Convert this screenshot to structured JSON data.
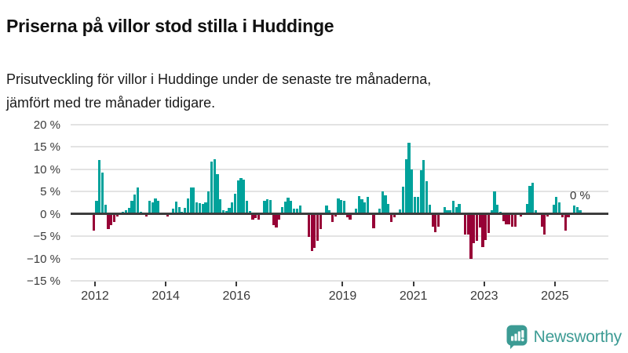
{
  "header": {
    "title": "Priserna på villor stod stilla i Huddinge",
    "subtitle_line1": "Prisutveckling för villor i Huddinge under de senaste tre månaderna,",
    "subtitle_line2": "jämfört med tre månader tidigare."
  },
  "chart_data": {
    "type": "bar",
    "title": "Priserna på villor stod stilla i Huddinge",
    "subtitle": "Prisutveckling för villor i Huddinge under de senaste tre månaderna, jämfört med tre månader tidigare.",
    "unit": "%",
    "frequency": "monthly",
    "x_start": "2011-12",
    "x_end": "2025-10",
    "ylim": [
      -15,
      20
    ],
    "grid": true,
    "y_ticks": [
      {
        "v": 20,
        "label": "20 %"
      },
      {
        "v": 15,
        "label": "15 %"
      },
      {
        "v": 10,
        "label": "10 %"
      },
      {
        "v": 5,
        "label": "5 %"
      },
      {
        "v": 0,
        "label": "0 %"
      },
      {
        "v": -5,
        "label": "−5 %"
      },
      {
        "v": -10,
        "label": "−10 %"
      },
      {
        "v": -15,
        "label": "−15 %"
      }
    ],
    "x_tick_years": [
      "2012",
      "2014",
      "2016",
      "2019",
      "2021",
      "2023",
      "2025"
    ],
    "positive_color": "#00A29B",
    "negative_color": "#970136",
    "annotation": {
      "text": "0 %",
      "applies_to": "latest value"
    },
    "values": [
      -3.7,
      3.0,
      12.0,
      9.2,
      2.0,
      -3.4,
      -2.5,
      -1.8,
      -0.6,
      0,
      0.4,
      0.9,
      1.3,
      3.0,
      4.4,
      6.0,
      0.5,
      0,
      -0.6,
      2.9,
      2.5,
      3.4,
      3.0,
      0,
      0,
      -0.5,
      0,
      1.1,
      2.7,
      1.6,
      0.5,
      1.4,
      3.4,
      5.9,
      5.9,
      2.5,
      2.4,
      2.3,
      2.5,
      5.0,
      11.8,
      12.2,
      8.9,
      3.2,
      0.8,
      0.6,
      1.4,
      2.6,
      4.5,
      7.5,
      8.0,
      7.7,
      3.0,
      0.6,
      -1.3,
      -1.0,
      -1.3,
      0,
      2.9,
      3.3,
      3.1,
      -2.6,
      -3.1,
      -1.3,
      1.6,
      2.7,
      3.7,
      2.9,
      1.1,
      1.2,
      1.8,
      0,
      0,
      -5.1,
      -8.4,
      -7.6,
      -6.0,
      -3.4,
      0,
      1.8,
      0.9,
      -1.9,
      -0.6,
      3.5,
      3.1,
      2.9,
      -0.8,
      -1.3,
      0,
      1.2,
      4.0,
      3.3,
      2.5,
      3.9,
      0,
      -3.3,
      0,
      1.1,
      5.0,
      4.1,
      2.2,
      -1.9,
      -0.8,
      0,
      1.0,
      6.1,
      12.3,
      16.0,
      9.9,
      3.9,
      3.9,
      9.8,
      12.1,
      7.4,
      2.0,
      -2.8,
      -4.1,
      -2.8,
      0,
      1.6,
      0.9,
      0.9,
      2.9,
      1.6,
      2.2,
      0,
      -4.7,
      -4.7,
      -10.0,
      -6.6,
      -6.1,
      -3.1,
      -7.5,
      -5.9,
      -4.2,
      0.8,
      5.0,
      2.1,
      0.5,
      -1.6,
      -2.4,
      -2.4,
      -2.8,
      -2.8,
      0,
      -0.6,
      0,
      2.2,
      6.2,
      6.9,
      0.9,
      0,
      -2.8,
      -4.7,
      -0.6,
      0,
      2.0,
      3.9,
      2.5,
      -0.8,
      -3.7,
      -0.8,
      0,
      1.9,
      1.6,
      0.9,
      0
    ]
  },
  "footer": {
    "brand": "Newsworthy"
  }
}
